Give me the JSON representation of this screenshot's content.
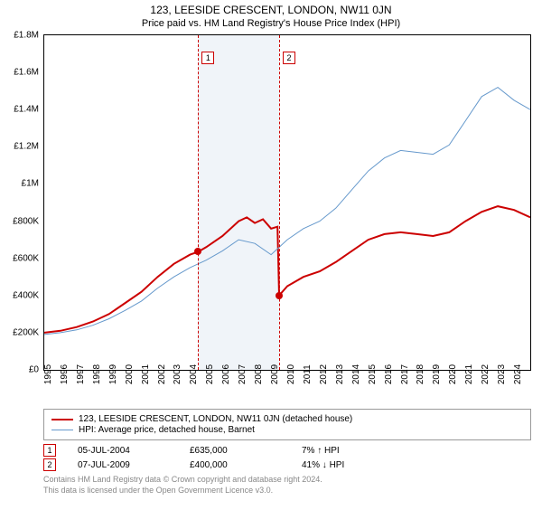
{
  "title": "123, LEESIDE CRESCENT, LONDON, NW11 0JN",
  "subtitle": "Price paid vs. HM Land Registry's House Price Index (HPI)",
  "chart": {
    "type": "line",
    "background_color": "#ffffff",
    "shade_color": "#f0f4f9",
    "xlim": [
      1995,
      2025
    ],
    "ylim": [
      0,
      1800000
    ],
    "ytick_step": 200000,
    "yticks": [
      "£0",
      "£200K",
      "£400K",
      "£600K",
      "£800K",
      "£1M",
      "£1.2M",
      "£1.4M",
      "£1.6M",
      "£1.8M"
    ],
    "xticks": [
      1995,
      1996,
      1997,
      1998,
      1999,
      2000,
      2001,
      2002,
      2003,
      2004,
      2005,
      2006,
      2007,
      2008,
      2009,
      2010,
      2011,
      2012,
      2013,
      2014,
      2015,
      2016,
      2017,
      2018,
      2019,
      2020,
      2021,
      2022,
      2023,
      2024
    ],
    "shade_start": 2004.5,
    "shade_end": 2009.5,
    "markers": [
      {
        "label": "1",
        "x": 2004.5,
        "y": 635000,
        "box_y_at_top": true
      },
      {
        "label": "2",
        "x": 2009.5,
        "y": 400000,
        "box_y_at_top": true
      }
    ],
    "dot_color": "#cc0000",
    "marker_line_color": "#cc0000",
    "series": [
      {
        "name": "123, LEESIDE CRESCENT, LONDON, NW11 0JN (detached house)",
        "color": "#cc0000",
        "line_width": 2,
        "data": [
          [
            1995,
            200000
          ],
          [
            1996,
            210000
          ],
          [
            1997,
            230000
          ],
          [
            1998,
            260000
          ],
          [
            1999,
            300000
          ],
          [
            2000,
            360000
          ],
          [
            2001,
            420000
          ],
          [
            2002,
            500000
          ],
          [
            2003,
            570000
          ],
          [
            2004,
            620000
          ],
          [
            2004.5,
            635000
          ],
          [
            2005,
            660000
          ],
          [
            2006,
            720000
          ],
          [
            2007,
            800000
          ],
          [
            2007.5,
            820000
          ],
          [
            2008,
            790000
          ],
          [
            2008.5,
            810000
          ],
          [
            2009,
            760000
          ],
          [
            2009.4,
            770000
          ],
          [
            2009.5,
            400000
          ],
          [
            2010,
            450000
          ],
          [
            2011,
            500000
          ],
          [
            2012,
            530000
          ],
          [
            2013,
            580000
          ],
          [
            2014,
            640000
          ],
          [
            2015,
            700000
          ],
          [
            2016,
            730000
          ],
          [
            2017,
            740000
          ],
          [
            2018,
            730000
          ],
          [
            2019,
            720000
          ],
          [
            2020,
            740000
          ],
          [
            2021,
            800000
          ],
          [
            2022,
            850000
          ],
          [
            2023,
            880000
          ],
          [
            2024,
            860000
          ],
          [
            2025,
            820000
          ]
        ]
      },
      {
        "name": "HPI: Average price, detached house, Barnet",
        "color": "#6699cc",
        "line_width": 1,
        "data": [
          [
            1995,
            190000
          ],
          [
            1996,
            200000
          ],
          [
            1997,
            215000
          ],
          [
            1998,
            240000
          ],
          [
            1999,
            275000
          ],
          [
            2000,
            320000
          ],
          [
            2001,
            370000
          ],
          [
            2002,
            440000
          ],
          [
            2003,
            500000
          ],
          [
            2004,
            550000
          ],
          [
            2005,
            590000
          ],
          [
            2006,
            640000
          ],
          [
            2007,
            700000
          ],
          [
            2008,
            680000
          ],
          [
            2009,
            620000
          ],
          [
            2010,
            700000
          ],
          [
            2011,
            760000
          ],
          [
            2012,
            800000
          ],
          [
            2013,
            870000
          ],
          [
            2014,
            970000
          ],
          [
            2015,
            1070000
          ],
          [
            2016,
            1140000
          ],
          [
            2017,
            1180000
          ],
          [
            2018,
            1170000
          ],
          [
            2019,
            1160000
          ],
          [
            2020,
            1210000
          ],
          [
            2021,
            1340000
          ],
          [
            2022,
            1470000
          ],
          [
            2023,
            1520000
          ],
          [
            2024,
            1450000
          ],
          [
            2025,
            1400000
          ]
        ]
      }
    ]
  },
  "legend": {
    "item1": "123, LEESIDE CRESCENT, LONDON, NW11 0JN (detached house)",
    "item2": "HPI: Average price, detached house, Barnet"
  },
  "sales": [
    {
      "marker": "1",
      "date": "05-JUL-2004",
      "price": "£635,000",
      "delta": "7% ↑ HPI"
    },
    {
      "marker": "2",
      "date": "07-JUL-2009",
      "price": "£400,000",
      "delta": "41% ↓ HPI"
    }
  ],
  "footer": {
    "line1": "Contains HM Land Registry data © Crown copyright and database right 2024.",
    "line2": "This data is licensed under the Open Government Licence v3.0."
  }
}
